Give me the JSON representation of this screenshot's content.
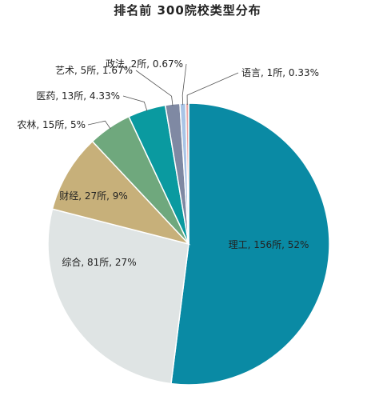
{
  "chart_data": {
    "type": "pie",
    "title": "排名前 300院校类型分布",
    "start_angle_deg": 0,
    "direction": "clockwise",
    "slices": [
      {
        "name": "理工",
        "count": 156,
        "percent": 52,
        "label": "理工, 156所, 52%",
        "color": "#0a8aa4"
      },
      {
        "name": "综合",
        "count": 81,
        "percent": 27,
        "label": "综合, 81所, 27%",
        "color": "#dfe4e4"
      },
      {
        "name": "财经",
        "count": 27,
        "percent": 9,
        "label": "财经, 27所, 9%",
        "color": "#c7b07a"
      },
      {
        "name": "农林",
        "count": 15,
        "percent": 5,
        "label": "农林, 15所, 5%",
        "color": "#6fa87d"
      },
      {
        "name": "医药",
        "count": 13,
        "percent": 4.33,
        "label": "医药, 13所, 4.33%",
        "color": "#0a9aa0"
      },
      {
        "name": "艺术",
        "count": 5,
        "percent": 1.67,
        "label": "艺术, 5所, 1.67%",
        "color": "#7f89a3"
      },
      {
        "name": "政法",
        "count": 2,
        "percent": 0.67,
        "label": "政法, 2所, 0.67%",
        "color": "#a9c4e6"
      },
      {
        "name": "语言",
        "count": 1,
        "percent": 0.33,
        "label": "语言, 1所, 0.33%",
        "color": "#e9a6a6"
      }
    ]
  }
}
